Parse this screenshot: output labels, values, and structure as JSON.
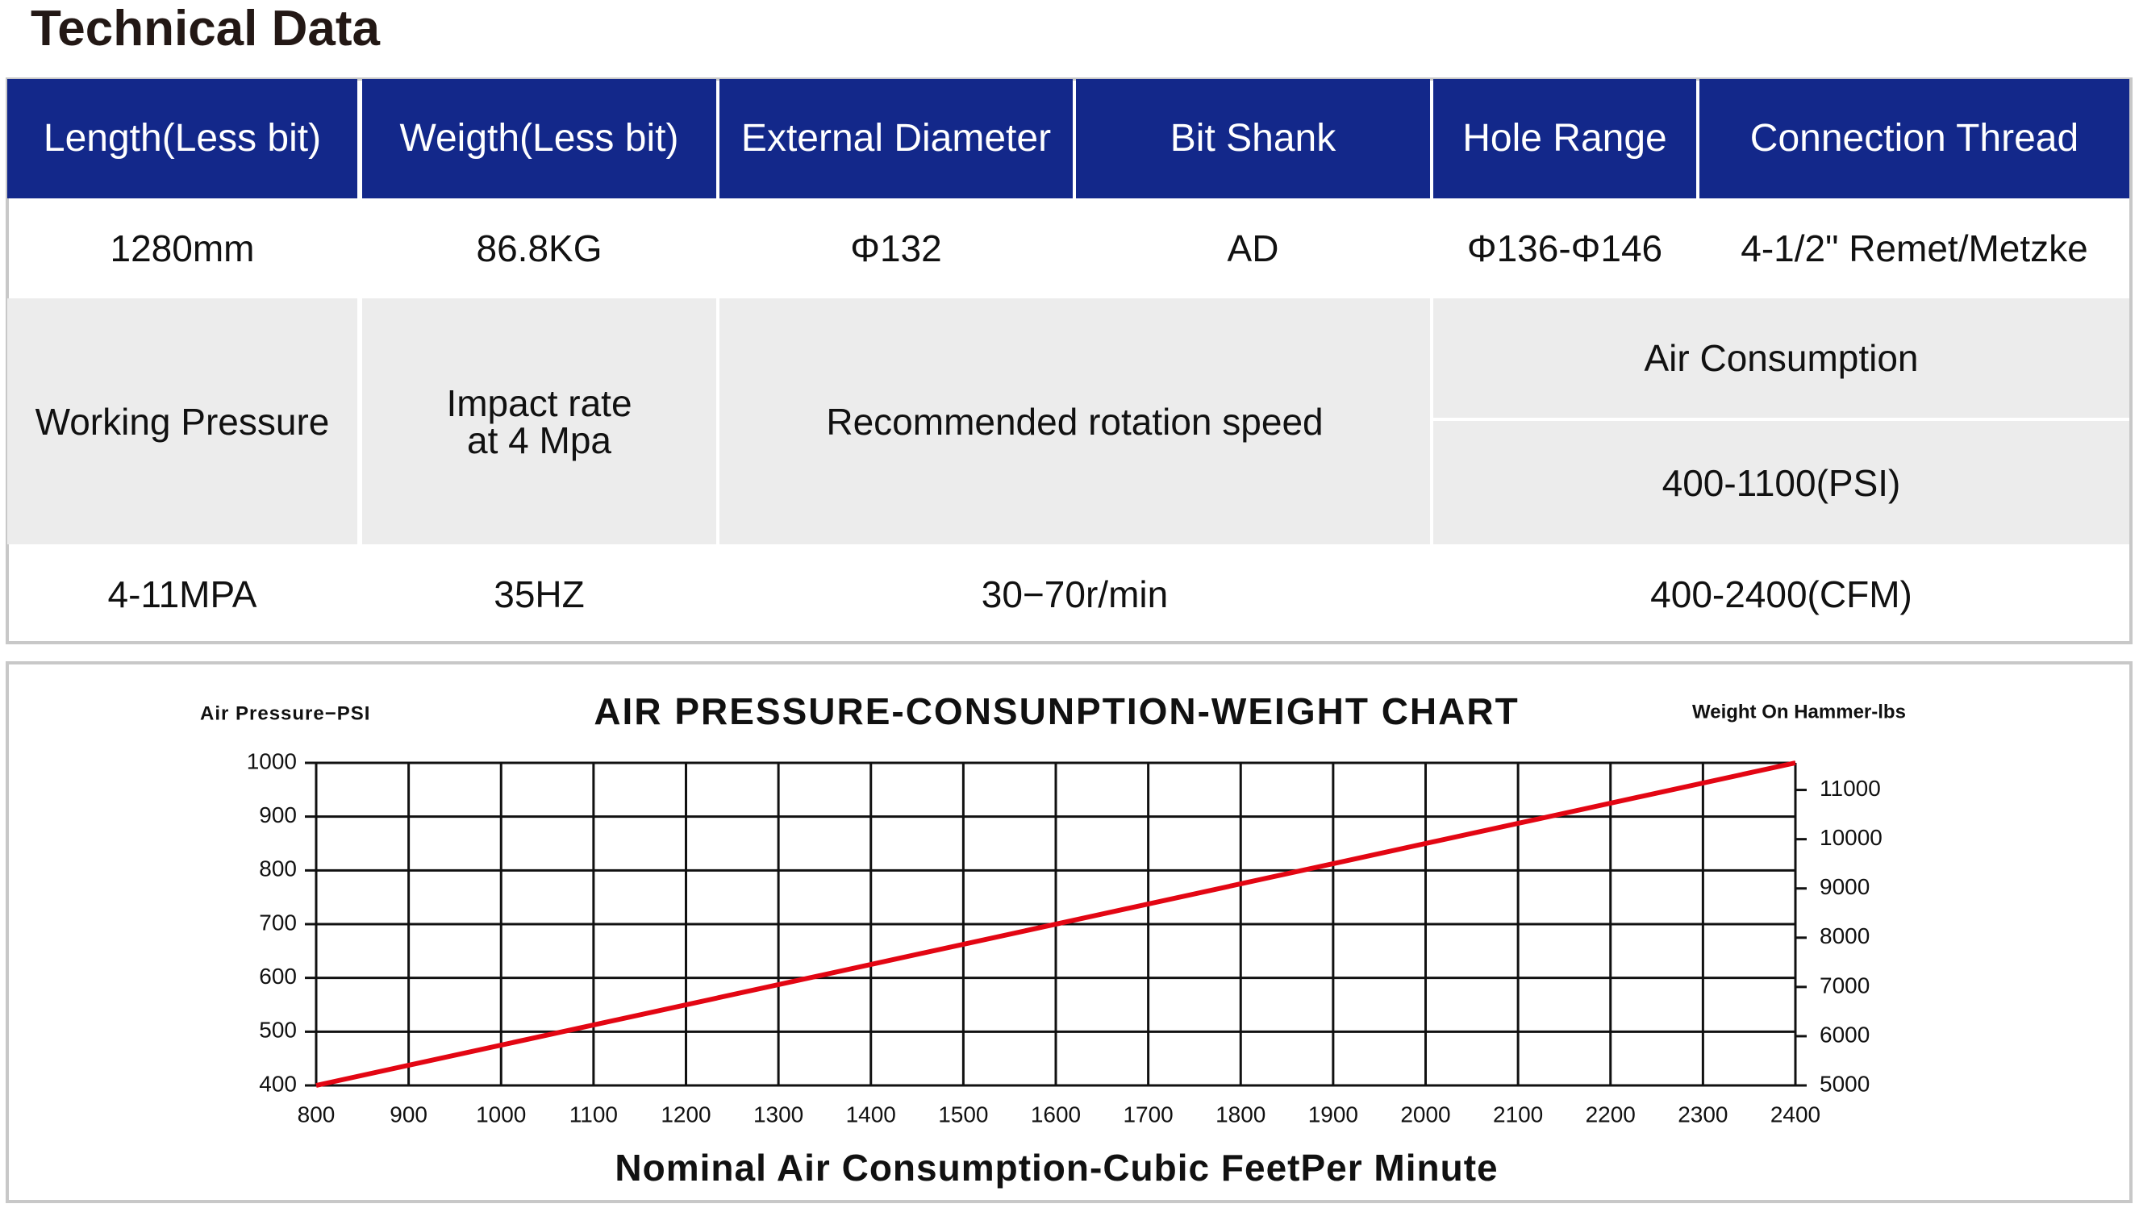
{
  "title": "Technical Data",
  "table": {
    "header": [
      "Length(Less bit)",
      "Weigth(Less bit)",
      "External Diameter",
      "Bit Shank",
      "Hole Range",
      "Connection Thread"
    ],
    "row1": [
      "1280mm",
      "86.8KG",
      "Φ132",
      "AD",
      "Φ136-Φ146",
      "4-1/2\" Remet/Metzke"
    ],
    "row2": [
      "Working Pressure",
      "Impact rate\nat 4 Mpa",
      "Recommended rotation speed",
      "Air Consumption",
      "400-1100(PSI)"
    ],
    "row3": [
      "4-11MPA",
      "35HZ",
      "30−70r/min",
      "400-2400(CFM)"
    ]
  },
  "chart_data": {
    "type": "line",
    "title": "AIR PRESSURE-CONSUNPTION-WEIGHT CHART",
    "ylabel": "Air Pressure−PSI",
    "y2label": "Weight On Hammer-lbs",
    "xlabel": "Nominal Air Consumption-Cubic FeetPer Minute",
    "x": [
      800,
      2400
    ],
    "series": [
      {
        "name": "Air Pressure",
        "color": "#e30613",
        "values": [
          400,
          1000
        ]
      }
    ],
    "xlim": [
      800,
      2400
    ],
    "xticks": [
      800,
      900,
      1000,
      1100,
      1200,
      1300,
      1400,
      1500,
      1600,
      1700,
      1800,
      1900,
      2000,
      2100,
      2200,
      2300,
      2400
    ],
    "ylim": [
      400,
      1000
    ],
    "yticks": [
      400,
      500,
      600,
      700,
      800,
      900,
      1000
    ],
    "y2lim": [
      5000,
      11550
    ],
    "y2ticks": [
      5000,
      6000,
      7000,
      8000,
      9000,
      10000,
      11000
    ],
    "grid": true
  }
}
